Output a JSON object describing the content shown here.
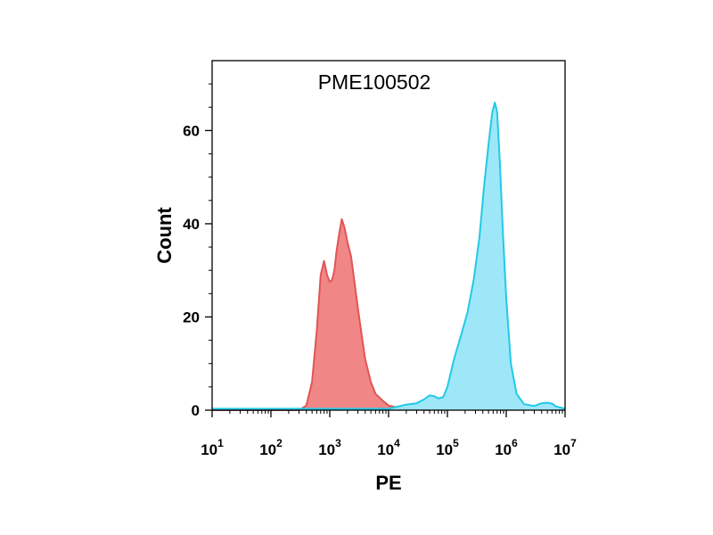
{
  "chart_data": {
    "type": "area",
    "title": "PME100502",
    "xlabel": "PE",
    "ylabel": "Count",
    "xscale": "log",
    "xlim": [
      10,
      10000000
    ],
    "ylim": [
      0,
      75
    ],
    "y_ticks": [
      0,
      20,
      40,
      60
    ],
    "x_ticks": [
      {
        "base": "10",
        "exp": "1",
        "value": 10
      },
      {
        "base": "10",
        "exp": "2",
        "value": 100
      },
      {
        "base": "10",
        "exp": "3",
        "value": 1000
      },
      {
        "base": "10",
        "exp": "4",
        "value": 10000
      },
      {
        "base": "10",
        "exp": "5",
        "value": 100000
      },
      {
        "base": "10",
        "exp": "6",
        "value": 1000000
      },
      {
        "base": "10",
        "exp": "7",
        "value": 10000000
      }
    ],
    "grid": false,
    "legend": "none",
    "series": [
      {
        "color": "#f08080",
        "stroke": "#e05555",
        "points": [
          [
            10,
            0
          ],
          [
            100,
            0
          ],
          [
            300,
            0
          ],
          [
            400,
            1
          ],
          [
            500,
            6
          ],
          [
            600,
            17
          ],
          [
            700,
            29
          ],
          [
            800,
            32
          ],
          [
            900,
            29
          ],
          [
            1000,
            27.5
          ],
          [
            1100,
            28
          ],
          [
            1200,
            30
          ],
          [
            1300,
            34
          ],
          [
            1450,
            38
          ],
          [
            1600,
            41
          ],
          [
            1800,
            39
          ],
          [
            2000,
            36
          ],
          [
            2300,
            33
          ],
          [
            2600,
            28
          ],
          [
            3000,
            22
          ],
          [
            3500,
            16
          ],
          [
            4000,
            11
          ],
          [
            5000,
            6
          ],
          [
            6000,
            3.5
          ],
          [
            8000,
            2
          ],
          [
            10000,
            1
          ],
          [
            15000,
            0.5
          ],
          [
            30000,
            0.2
          ],
          [
            50000,
            0
          ]
        ]
      },
      {
        "color": "#99e6f9",
        "stroke": "#22c9e6",
        "points": [
          [
            10,
            0.3
          ],
          [
            1000,
            0.3
          ],
          [
            10000,
            0.3
          ],
          [
            20000,
            1.2
          ],
          [
            30000,
            1.5
          ],
          [
            40000,
            2.3
          ],
          [
            50000,
            3.2
          ],
          [
            60000,
            3
          ],
          [
            70000,
            2.5
          ],
          [
            85000,
            2.8
          ],
          [
            100000,
            5
          ],
          [
            130000,
            11
          ],
          [
            170000,
            16
          ],
          [
            220000,
            21
          ],
          [
            280000,
            28
          ],
          [
            350000,
            37
          ],
          [
            420000,
            48
          ],
          [
            500000,
            57
          ],
          [
            580000,
            64
          ],
          [
            640000,
            66
          ],
          [
            700000,
            64
          ],
          [
            780000,
            53
          ],
          [
            880000,
            38
          ],
          [
            1000000,
            24
          ],
          [
            1200000,
            10
          ],
          [
            1500000,
            3.5
          ],
          [
            2000000,
            1.3
          ],
          [
            3000000,
            0.9
          ],
          [
            4000000,
            1.5
          ],
          [
            5000000,
            1.6
          ],
          [
            6000000,
            1.4
          ],
          [
            7000000,
            0.8
          ],
          [
            10000000,
            0.3
          ]
        ]
      }
    ]
  }
}
